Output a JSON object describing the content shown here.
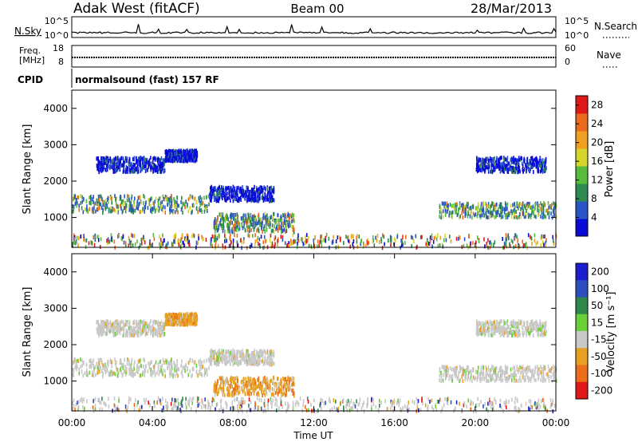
{
  "header": {
    "station": "Adak West (fitACF)",
    "beam": "Beam 00",
    "date": "28/Mar/2013"
  },
  "strips": {
    "nsky": {
      "label": "N.Sky",
      "right_label": "N.Search",
      "ticks": [
        "10^5",
        "10^0"
      ],
      "right_ticks": [
        "10^5",
        "10^0"
      ]
    },
    "freq": {
      "label_lines": [
        "Freq.",
        "[MHz]"
      ],
      "right_label": "Nave",
      "ticks": [
        "18",
        "8"
      ],
      "right_ticks": [
        "60",
        "0"
      ]
    },
    "cpid": {
      "label": "CPID",
      "value": "normalsound (fast) 157 RF"
    }
  },
  "chart_data": [
    {
      "type": "heatmap",
      "parameter": "Power",
      "xlabel": "Time UT",
      "ylabel": "Slant Range [km]",
      "colorbar_label": "Power [dB]",
      "xlim": [
        "00:00",
        "24:00"
      ],
      "ylim": [
        180,
        4500
      ],
      "x_ticks": [
        "00:00",
        "04:00",
        "08:00",
        "12:00",
        "16:00",
        "20:00",
        "00:00"
      ],
      "y_ticks": [
        1000,
        2000,
        3000,
        4000
      ],
      "colorbar_ticks": [
        4,
        8,
        12,
        16,
        20,
        24,
        28
      ],
      "colorbar_range": [
        0,
        30
      ],
      "colors": [
        "#0a0ad8",
        "#2a55c8",
        "#2e8a52",
        "#58bb3e",
        "#d6d62a",
        "#f0a020",
        "#ec6a1c",
        "#e01818"
      ]
    },
    {
      "type": "heatmap",
      "parameter": "Velocity",
      "xlabel": "Time UT",
      "ylabel": "Slant Range [km]",
      "colorbar_label": "Velocity [m s⁻¹]",
      "xlim": [
        "00:00",
        "24:00"
      ],
      "ylim": [
        180,
        4500
      ],
      "x_ticks": [
        "00:00",
        "04:00",
        "08:00",
        "12:00",
        "16:00",
        "20:00",
        "00:00"
      ],
      "y_ticks": [
        1000,
        2000,
        3000,
        4000
      ],
      "colorbar_ticks": [
        "200",
        "100",
        "50",
        "15",
        "-15",
        "-50",
        "-100",
        "-200"
      ],
      "colors": [
        "#1c1cd0",
        "#2b4fbf",
        "#2f8a4a",
        "#6ad038",
        "#c8c8c8",
        "#e8a020",
        "#ec6e18",
        "#e01818"
      ]
    }
  ],
  "scatter_regions": [
    {
      "t": [
        0.0,
        6.8
      ],
      "r": [
        1180,
        1650
      ],
      "power_class": "mid",
      "velocity_class": "grey"
    },
    {
      "t": [
        6.8,
        10.0
      ],
      "r": [
        1500,
        1900
      ],
      "power_class": "low",
      "velocity_class": "grey"
    },
    {
      "t": [
        7.0,
        11.0
      ],
      "r": [
        650,
        1150
      ],
      "power_class": "mid",
      "velocity_class": "orange"
    },
    {
      "t": [
        1.2,
        4.6
      ],
      "r": [
        2300,
        2700
      ],
      "power_class": "low",
      "velocity_class": "grey"
    },
    {
      "t": [
        4.6,
        6.2
      ],
      "r": [
        2600,
        2900
      ],
      "power_class": "low",
      "velocity_class": "orange"
    },
    {
      "t": [
        18.2,
        24.0
      ],
      "r": [
        1050,
        1450
      ],
      "power_class": "mid",
      "velocity_class": "grey"
    },
    {
      "t": [
        20.0,
        23.5
      ],
      "r": [
        2300,
        2700
      ],
      "power_class": "low",
      "velocity_class": "grey"
    },
    {
      "t": [
        0.0,
        24.0
      ],
      "r": [
        220,
        580
      ],
      "power_class": "noise",
      "velocity_class": "noise"
    }
  ]
}
